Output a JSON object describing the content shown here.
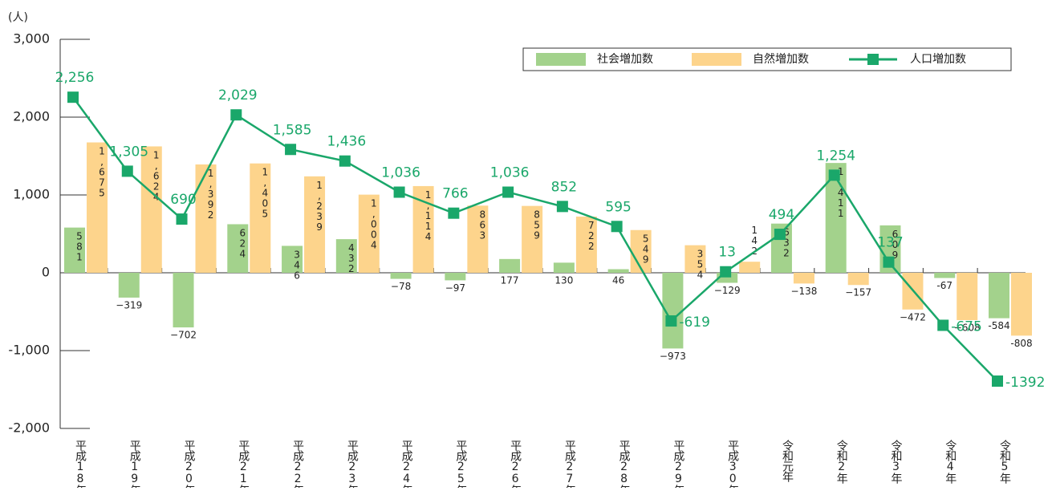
{
  "chart_data": {
    "type": "combo",
    "y_axis_label": "(人)",
    "categories": [
      "平成18年",
      "平成19年",
      "平成20年",
      "平成21年",
      "平成22年",
      "平成23年",
      "平成24年",
      "平成25年",
      "平成26年",
      "平成27年",
      "平成28年",
      "平成29年",
      "平成30年",
      "令和元年",
      "令和2年",
      "令和3年",
      "令和4年",
      "令和5年"
    ],
    "ylim": [
      -2000,
      3000
    ],
    "yticks": [
      {
        "value": -2000,
        "label": "-2,000"
      },
      {
        "value": -1000,
        "label": "-1,000"
      },
      0,
      {
        "value": 1000,
        "label": "1,000"
      },
      {
        "value": 2000,
        "label": "2,000"
      },
      {
        "value": 3000,
        "label": "3,000"
      }
    ],
    "legend": "top-right",
    "series": [
      {
        "name": "社会増加数",
        "type": "bar",
        "color": "#a3d28c",
        "values": [
          581,
          -319,
          -702,
          624,
          346,
          432,
          -78,
          -97,
          177,
          130,
          46,
          -973,
          -129,
          632,
          1411,
          609,
          -67,
          -584
        ],
        "value_labels": [
          "581",
          "−319",
          "−702",
          "624",
          "346",
          "432",
          "−78",
          "−97",
          "177",
          "130",
          "46",
          "−973",
          "−129",
          "632",
          "1,411",
          "609",
          "-67",
          "-584"
        ]
      },
      {
        "name": "自然増加数",
        "type": "bar",
        "color": "#fdd48c",
        "values": [
          1675,
          1624,
          1392,
          1405,
          1239,
          1004,
          1114,
          863,
          859,
          722,
          549,
          354,
          142,
          -138,
          -157,
          -472,
          -608,
          -808
        ],
        "value_labels": [
          "1,675",
          "1,624",
          "1,392",
          "1,405",
          "1,239",
          "1,004",
          "1,114",
          "863",
          "859",
          "722",
          "549",
          "354",
          "142",
          "−138",
          "−157",
          "−472",
          "−608",
          "-808"
        ]
      },
      {
        "name": "人口増加数",
        "type": "line",
        "color": "#1aa76a",
        "values": [
          2256,
          1305,
          690,
          2029,
          1585,
          1436,
          1036,
          766,
          1036,
          852,
          595,
          -619,
          13,
          494,
          1254,
          137,
          -675,
          -1392
        ],
        "value_labels": [
          "2,256",
          "1,305",
          "690",
          "2,029",
          "1,585",
          "1,436",
          "1,036",
          "766",
          "1,036",
          "852",
          "595",
          "-619",
          "13",
          "494",
          "1,254",
          "137",
          "-675",
          "-1392"
        ]
      }
    ]
  }
}
